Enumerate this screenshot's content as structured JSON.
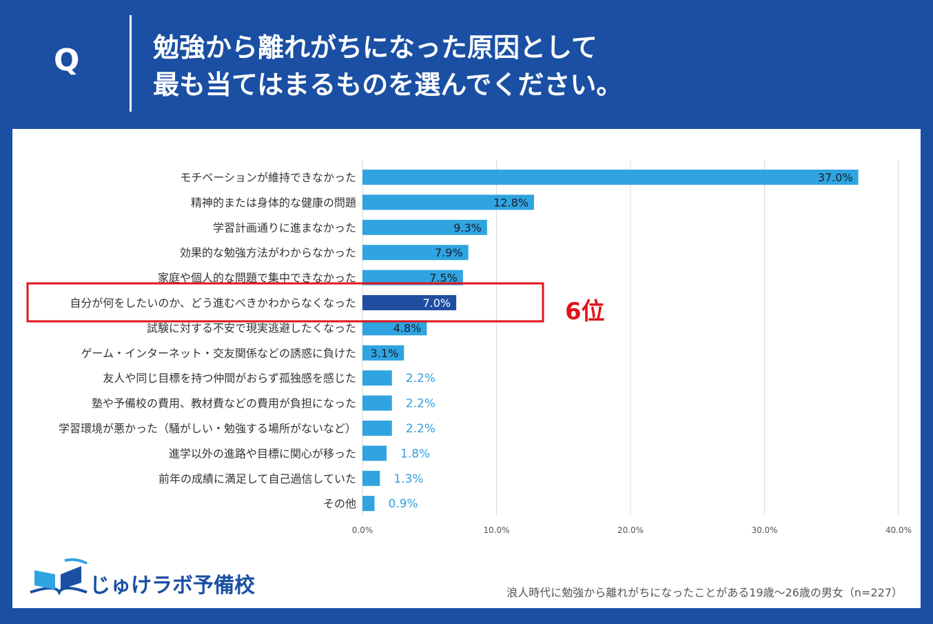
{
  "header": {
    "q_letter": "Q",
    "question_line1": "勉強から離れがちになった原因として",
    "question_line2": "最も当てはまるものを選んでください。"
  },
  "highlight": {
    "rank_label": "6位",
    "color": "#e0141b"
  },
  "colors": {
    "background": "#1a4fa3",
    "bar": "#2fa4e0",
    "bar_highlight": "#1f4ea0"
  },
  "chart_data": {
    "type": "bar",
    "orientation": "horizontal",
    "categories": [
      "モチベーションが維持できなかった",
      "精神的または身体的な健康の問題",
      "学習計画通りに進まなかった",
      "効果的な勉強方法がわからなかった",
      "家庭や個人的な問題で集中できなかった",
      "自分が何をしたいのか、どう進むべきかわからなくなった",
      "試験に対する不安で現実逃避したくなった",
      "ゲーム・インターネット・交友関係などの誘惑に負けた",
      "友人や同じ目標を持つ仲間がおらず孤独感を感じた",
      "塾や予備校の費用、教材費などの費用が負担になった",
      "学習環境が悪かった（騒がしい・勉強する場所がないなど）",
      "進学以外の進路や目標に関心が移った",
      "前年の成績に満足して自己過信していた",
      "その他"
    ],
    "values": [
      37.0,
      12.8,
      9.3,
      7.9,
      7.5,
      7.0,
      4.8,
      3.1,
      2.2,
      2.2,
      2.2,
      1.8,
      1.3,
      0.9
    ],
    "value_labels": [
      "37.0%",
      "12.8%",
      "9.3%",
      "7.9%",
      "7.5%",
      "7.0%",
      "4.8%",
      "3.1%",
      "2.2%",
      "2.2%",
      "2.2%",
      "1.8%",
      "1.3%",
      "0.9%"
    ],
    "highlight_index": 5,
    "xlim": [
      0,
      40
    ],
    "xticks": [
      "0.0%",
      "10.0%",
      "20.0%",
      "30.0%",
      "40.0%"
    ],
    "grid": true
  },
  "footer": {
    "logo_text": "じゅけラボ予備校",
    "note": "浪人時代に勉強から離れがちになったことがある19歳～26歳の男女（n=227）"
  }
}
